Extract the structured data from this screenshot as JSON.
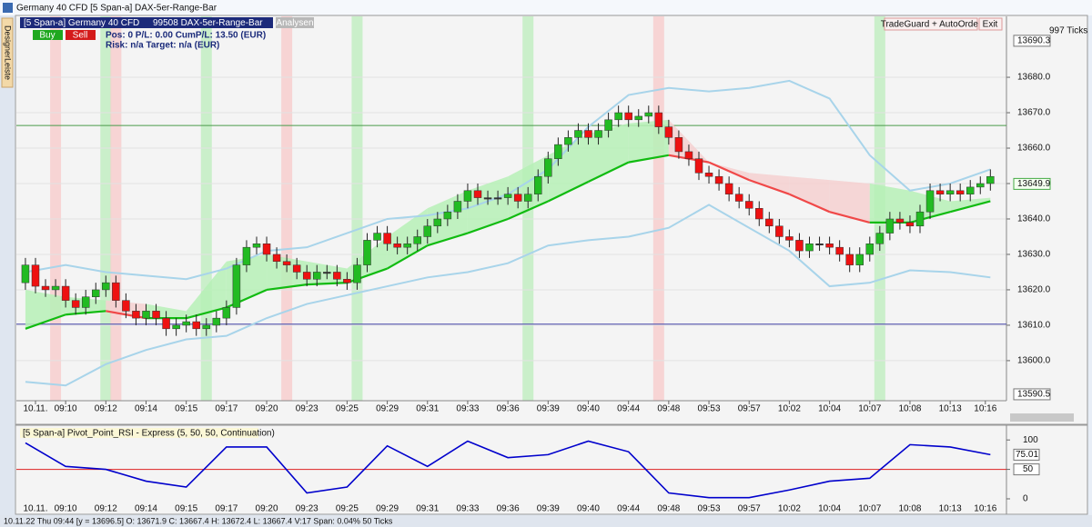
{
  "window": {
    "title": "Germany 40 CFD [5 Span-a]",
    "subtitle": "DAX-5er-Range-Bar"
  },
  "sidebar": "DesignerLeiste",
  "chart_header": {
    "symbol": "[5 Span-a] Germany 40 CFD",
    "bars": "99508 DAX-5er-Range-Bar",
    "analysen": "Analysen"
  },
  "toolbar": {
    "buy": "Buy",
    "sell": "Sell",
    "position": "Pos: 0  P/L: 0.00  CumP/L:  13.50 (EUR)",
    "risk": "Risk: n/a  Target: n/a (EUR)",
    "tradeguard": "TradeGuard + AutoOrder",
    "exit": "Exit",
    "ticks": "997 Ticks"
  },
  "status_bar": "10.11.22 Thu  09:44 [y = 13696.5]   O: 13671.9 C: 13667.4 H: 13672.4 L: 13667.4 V:17 Span: 0.04% 50 Ticks",
  "chart_data": [
    {
      "type": "candlestick",
      "open": [
        13622,
        13627,
        13621,
        13620,
        13621,
        13617,
        13615,
        13618,
        13620,
        13622,
        13617,
        13614,
        13612,
        13614,
        13612,
        13609,
        13610,
        13611,
        13609,
        13610,
        13612,
        13615,
        13627,
        13632,
        13633,
        13630,
        13628,
        13627,
        13625,
        13623,
        13625,
        13625,
        13623,
        13622,
        13627,
        13634,
        13636,
        13633,
        13632,
        13633,
        13635,
        13638,
        13640,
        13642,
        13645,
        13648,
        13646,
        13646,
        13646,
        13647,
        13645,
        13647,
        13652,
        13657,
        13661,
        13663,
        13665,
        13663,
        13665,
        13668,
        13670,
        13668,
        13669,
        13670,
        13666,
        13663,
        13659,
        13657,
        13653,
        13652,
        13650,
        13647,
        13645,
        13643,
        13640,
        13638,
        13635,
        13634,
        13631,
        13633,
        13633,
        13632,
        13630,
        13627,
        13630,
        13633,
        13636,
        13640,
        13639,
        13638,
        13642,
        13648,
        13647,
        13648,
        13647,
        13649,
        13650
      ],
      "high": [
        13629,
        13629,
        13623,
        13623,
        13623,
        13619,
        13620,
        13622,
        13624,
        13624,
        13619,
        13616,
        13616,
        13616,
        13614,
        13612,
        13613,
        13613,
        13612,
        13614,
        13617,
        13629,
        13634,
        13635,
        13635,
        13632,
        13630,
        13629,
        13627,
        13627,
        13627,
        13627,
        13625,
        13629,
        13636,
        13638,
        13638,
        13635,
        13635,
        13637,
        13640,
        13642,
        13644,
        13647,
        13650,
        13650,
        13648,
        13648,
        13649,
        13649,
        13649,
        13654,
        13659,
        13663,
        13665,
        13667,
        13667,
        13667,
        13670,
        13672,
        13672,
        13671,
        13672,
        13672,
        13668,
        13665,
        13661,
        13659,
        13655,
        13654,
        13652,
        13649,
        13647,
        13645,
        13642,
        13640,
        13637,
        13636,
        13635,
        13635,
        13635,
        13634,
        13632,
        13632,
        13635,
        13638,
        13642,
        13642,
        13641,
        13644,
        13650,
        13650,
        13650,
        13650,
        13651,
        13652,
        13654
      ],
      "low": [
        13620,
        13619,
        13618,
        13618,
        13615,
        13613,
        13613,
        13616,
        13618,
        13615,
        13612,
        13610,
        13610,
        13610,
        13607,
        13607,
        13608,
        13607,
        13607,
        13608,
        13610,
        13613,
        13625,
        13630,
        13628,
        13626,
        13625,
        13623,
        13621,
        13621,
        13623,
        13621,
        13620,
        13620,
        13625,
        13632,
        13631,
        13630,
        13630,
        13631,
        13633,
        13636,
        13638,
        13640,
        13643,
        13644,
        13644,
        13644,
        13644,
        13643,
        13643,
        13645,
        13650,
        13655,
        13659,
        13661,
        13661,
        13661,
        13663,
        13666,
        13666,
        13666,
        13667,
        13664,
        13661,
        13657,
        13655,
        13651,
        13650,
        13648,
        13645,
        13643,
        13641,
        13638,
        13636,
        13633,
        13632,
        13629,
        13629,
        13631,
        13630,
        13628,
        13625,
        13625,
        13628,
        13631,
        13634,
        13637,
        13636,
        13636,
        13640,
        13645,
        13645,
        13645,
        13645,
        13647,
        13648
      ],
      "close": [
        13627,
        13621,
        13620,
        13621,
        13617,
        13615,
        13618,
        13620,
        13622,
        13617,
        13614,
        13612,
        13614,
        13612,
        13609,
        13610,
        13611,
        13609,
        13610,
        13612,
        13615,
        13627,
        13632,
        13633,
        13630,
        13628,
        13627,
        13625,
        13623,
        13625,
        13625,
        13623,
        13622,
        13627,
        13634,
        13636,
        13633,
        13632,
        13633,
        13635,
        13638,
        13640,
        13642,
        13645,
        13648,
        13646,
        13646,
        13646,
        13647,
        13645,
        13647,
        13652,
        13657,
        13661,
        13663,
        13665,
        13663,
        13665,
        13668,
        13670,
        13668,
        13669,
        13670,
        13666,
        13663,
        13659,
        13657,
        13653,
        13652,
        13650,
        13647,
        13645,
        13643,
        13640,
        13638,
        13635,
        13634,
        13631,
        13633,
        13633,
        13632,
        13630,
        13627,
        13630,
        13633,
        13636,
        13640,
        13639,
        13638,
        13642,
        13648,
        13647,
        13648,
        13647,
        13649,
        13650,
        13652
      ],
      "up_color": "#22bb22",
      "down_color": "#ee1111",
      "doji_color": "#333333",
      "xlim": [
        -0.9,
        97.6
      ],
      "ylim": [
        13585.1,
        13697.2
      ],
      "xticks": [
        {
          "value": 1,
          "label": "10.11."
        },
        {
          "value": 4,
          "label": "09:10"
        },
        {
          "value": 8,
          "label": "09:12"
        },
        {
          "value": 12,
          "label": "09:14"
        },
        {
          "value": 16,
          "label": "09:15"
        },
        {
          "value": 20,
          "label": "09:17"
        },
        {
          "value": 24,
          "label": "09:20"
        },
        {
          "value": 28,
          "label": "09:23"
        },
        {
          "value": 32,
          "label": "09:25"
        },
        {
          "value": 36,
          "label": "09:29"
        },
        {
          "value": 40,
          "label": "09:31"
        },
        {
          "value": 44,
          "label": "09:33"
        },
        {
          "value": 48,
          "label": "09:36"
        },
        {
          "value": 52,
          "label": "09:39"
        },
        {
          "value": 56,
          "label": "09:40"
        },
        {
          "value": 60,
          "label": "09:44"
        },
        {
          "value": 64,
          "label": "09:48"
        },
        {
          "value": 68,
          "label": "09:53"
        },
        {
          "value": 72,
          "label": "09:57"
        },
        {
          "value": 76,
          "label": "10:02"
        },
        {
          "value": 80,
          "label": "10:04"
        },
        {
          "value": 84,
          "label": "10:07"
        },
        {
          "value": 88,
          "label": "10:08"
        },
        {
          "value": 92,
          "label": "10:13"
        },
        {
          "value": 95.5,
          "label": "10:16"
        }
      ],
      "yticks": [
        {
          "value": 13600,
          "label": "13600.0"
        },
        {
          "value": 13610,
          "label": "13610.0"
        },
        {
          "value": 13620,
          "label": "13620.0"
        },
        {
          "value": 13630,
          "label": "13630.0"
        },
        {
          "value": 13640,
          "label": "13640.0"
        },
        {
          "value": 13650,
          "label": "13650.0"
        },
        {
          "value": 13660,
          "label": "13660.0"
        },
        {
          "value": 13670,
          "label": "13670.0"
        },
        {
          "value": 13680,
          "label": "13680.0"
        }
      ],
      "range_labels": [
        13690.3,
        13590.5
      ],
      "last_price": 13649.9,
      "grid": true,
      "levels": [
        {
          "value": 13666.4,
          "color": "#4a9a4a"
        },
        {
          "value": 13610.3,
          "color": "#4444aa"
        }
      ],
      "signals": {
        "green": [
          8,
          18,
          33,
          50,
          85
        ],
        "red": [
          3,
          9,
          26,
          63
        ],
        "green_color": "#bfeebf",
        "red_color": "#f7cccc"
      },
      "indicator_x": [
        0,
        4,
        8,
        12,
        16,
        20,
        24,
        28,
        32,
        36,
        40,
        44,
        48,
        52,
        56,
        60,
        64,
        68,
        72,
        76,
        80,
        84,
        88,
        92,
        96
      ],
      "ma": {
        "values": [
          13609,
          13613,
          13614,
          13612,
          13612,
          13615,
          13620,
          13621.5,
          13622,
          13626,
          13632.5,
          13636,
          13640,
          13645,
          13650.5,
          13656,
          13658,
          13656,
          13651,
          13647,
          13642,
          13639,
          13639,
          13642,
          13645
        ],
        "up_color": "#11bb11",
        "down_color": "#f04848"
      },
      "cloud": {
        "values": [
          13620,
          13618,
          13617,
          13616,
          13614,
          13628,
          13630,
          13628,
          13626,
          13635,
          13643,
          13648,
          13652,
          13658,
          13664,
          13667,
          13668,
          13656,
          13653,
          13652,
          13651,
          13650,
          13648,
          13645,
          13646
        ],
        "up_fill": "#b6f0b6",
        "down_fill": "#f5d0d0"
      },
      "bollinger": {
        "color": "#a8d4ea",
        "upper": [
          13625,
          13627,
          13625,
          13624,
          13623,
          13626,
          13631,
          13632,
          13636,
          13640,
          13641,
          13643,
          13647,
          13654,
          13666,
          13675,
          13677,
          13676,
          13677,
          13679,
          13674,
          13658,
          13648,
          13650,
          13654
        ],
        "lower": [
          13594,
          13593,
          13599,
          13603,
          13606,
          13607,
          13612,
          13616,
          13618.5,
          13621,
          13623.5,
          13625,
          13627.5,
          13632.5,
          13634,
          13635,
          13637.5,
          13644,
          13637.5,
          13631,
          13621,
          13622,
          13625.5,
          13625,
          13623.5
        ]
      }
    },
    {
      "type": "line",
      "title": "[5 Span-a] Pivot_Point_RSI - Express  (5, 50, 50, Continuation)",
      "x": [
        0,
        4,
        8,
        12,
        16,
        20,
        24,
        28,
        32,
        36,
        40,
        44,
        48,
        52,
        56,
        60,
        64,
        68,
        72,
        76,
        80,
        84,
        88,
        92,
        96
      ],
      "values": [
        95,
        55,
        50,
        30,
        20,
        88,
        88,
        10,
        20,
        90,
        55,
        98,
        70,
        75,
        98,
        80,
        10,
        2,
        2,
        15,
        30,
        35,
        92,
        88,
        75.01
      ],
      "color": "#0000cc",
      "xlim": [
        -0.9,
        97.6
      ],
      "ylim": [
        -17,
        125
      ],
      "yticks": [
        0,
        50,
        100
      ],
      "level": 50,
      "level_color": "#dd2222"
    }
  ]
}
